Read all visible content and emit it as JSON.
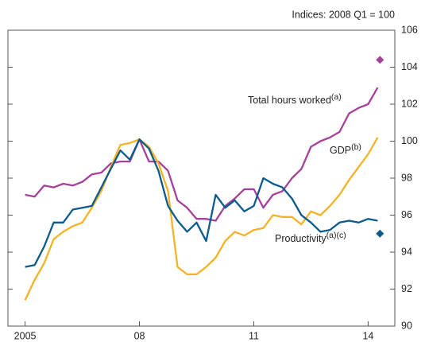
{
  "chart_data": {
    "type": "line",
    "axis_label": "Indices: 2008 Q1 = 100",
    "xlim": [
      2004.55,
      2014.7
    ],
    "xticks": [
      {
        "value": 2005,
        "label": "2005"
      },
      {
        "value": 2008,
        "label": "08"
      },
      {
        "value": 2011,
        "label": "11"
      },
      {
        "value": 2014,
        "label": "14"
      }
    ],
    "ylim": [
      90,
      106
    ],
    "yticks": [
      90,
      92,
      94,
      96,
      98,
      100,
      102,
      104,
      106
    ],
    "x": [
      2005,
      2005.25,
      2005.5,
      2005.75,
      2006,
      2006.25,
      2006.5,
      2006.75,
      2007,
      2007.25,
      2007.5,
      2007.75,
      2008,
      2008.25,
      2008.5,
      2008.75,
      2009,
      2009.25,
      2009.5,
      2009.75,
      2010,
      2010.25,
      2010.5,
      2010.75,
      2011,
      2011.25,
      2011.5,
      2011.75,
      2012,
      2012.25,
      2012.5,
      2012.75,
      2013,
      2013.25,
      2013.5,
      2013.75,
      2014,
      2014.25
    ],
    "series": [
      {
        "name": "Total hours worked",
        "superscript": "(a)",
        "color": "#a6409a",
        "values": [
          97.1,
          97.0,
          97.6,
          97.5,
          97.7,
          97.6,
          97.8,
          98.2,
          98.3,
          98.8,
          98.9,
          98.9,
          100.1,
          98.9,
          98.9,
          98.4,
          96.8,
          96.4,
          95.8,
          95.8,
          95.7,
          96.5,
          96.9,
          97.4,
          97.4,
          96.4,
          97.1,
          97.3,
          98.0,
          98.5,
          99.7,
          100.0,
          100.2,
          100.5,
          101.5,
          101.8,
          102.0,
          102.9
        ]
      },
      {
        "name": "GDP",
        "superscript": "(b)",
        "color": "#f5b324",
        "values": [
          91.4,
          92.5,
          93.4,
          94.7,
          95.1,
          95.4,
          95.6,
          96.4,
          97.3,
          98.6,
          99.8,
          99.9,
          100.1,
          99.7,
          98.8,
          97.3,
          93.2,
          92.8,
          92.8,
          93.2,
          93.7,
          94.6,
          95.1,
          94.9,
          95.2,
          95.3,
          96.0,
          95.9,
          95.9,
          95.5,
          96.2,
          96.0,
          96.5,
          97.1,
          97.9,
          98.6,
          99.3,
          100.2
        ]
      },
      {
        "name": "Productivity",
        "superscript": "(a)(c)",
        "color": "#0b5b8f",
        "values": [
          93.2,
          93.3,
          94.3,
          95.6,
          95.6,
          96.3,
          96.4,
          96.5,
          97.5,
          98.5,
          99.5,
          99.0,
          100.1,
          99.6,
          98.4,
          96.5,
          95.7,
          95.1,
          95.6,
          94.6,
          97.1,
          96.4,
          96.8,
          96.2,
          96.5,
          98.0,
          97.7,
          97.5,
          96.9,
          96.0,
          95.6,
          95.1,
          95.2,
          95.6,
          95.7,
          95.6,
          95.8,
          95.7
        ]
      }
    ],
    "projections": [
      {
        "x": 2014.31,
        "value": 104.4,
        "color": "#a6409a"
      },
      {
        "x": 2014.31,
        "value": 95.0,
        "color": "#0b5b8f"
      }
    ]
  }
}
